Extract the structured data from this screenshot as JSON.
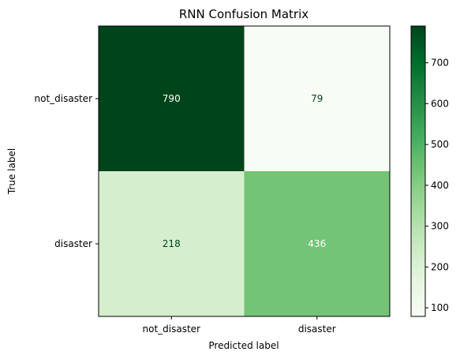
{
  "chart_data": {
    "type": "heatmap",
    "title": "RNN Confusion Matrix",
    "xlabel": "Predicted label",
    "ylabel": "True label",
    "x_categories": [
      "not_disaster",
      "disaster"
    ],
    "y_categories": [
      "not_disaster",
      "disaster"
    ],
    "values": [
      [
        790,
        79
      ],
      [
        218,
        436
      ]
    ],
    "colormap": "Greens",
    "colorbar": {
      "min": 79,
      "max": 790,
      "ticks": [
        "100",
        "200",
        "300",
        "400",
        "500",
        "600",
        "700"
      ]
    },
    "grid": false
  }
}
